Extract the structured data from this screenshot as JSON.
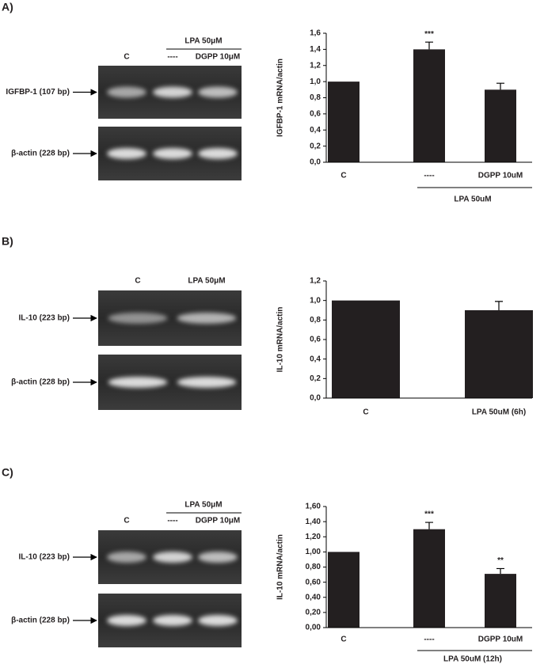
{
  "panels": [
    {
      "label": "A)",
      "gel": {
        "group_label": "LPA 50μM",
        "lanes": [
          "C",
          "----",
          "DGPP 10μM"
        ],
        "bands": [
          "IGFBP-1 (107 bp)",
          "β-actin (228 bp)"
        ]
      }
    },
    {
      "label": "B)",
      "gel": {
        "lanes": [
          "C",
          "LPA 50μM"
        ],
        "bands": [
          "IL-10 (223 bp)",
          "β-actin (228 bp)"
        ]
      }
    },
    {
      "label": "C)",
      "gel": {
        "group_label": "LPA 50μM",
        "lanes": [
          "C",
          "----",
          "DGPP 10μM"
        ],
        "bands": [
          "IL-10 (223 bp)",
          "β-actin (228 bp)"
        ]
      }
    }
  ],
  "chart_data": [
    {
      "type": "bar",
      "ylabel": "IGFBP-1 mRNA/actin",
      "categories": [
        "C",
        "----",
        "DGPP 10uM"
      ],
      "group_label": "LPA 50uM",
      "values": [
        1.0,
        1.4,
        0.9
      ],
      "errors": [
        null,
        0.09,
        0.08
      ],
      "annotations": [
        null,
        "***",
        null
      ],
      "color": "#231f20",
      "ylim": [
        0,
        1.6
      ],
      "yticks": [
        {
          "value": 0,
          "label": "0,0"
        },
        {
          "value": 0.2,
          "label": "0,2"
        },
        {
          "value": 0.4,
          "label": "0,4"
        },
        {
          "value": 0.6,
          "label": "0,6"
        },
        {
          "value": 0.8,
          "label": "0,8"
        },
        {
          "value": 1.0,
          "label": "1,0"
        },
        {
          "value": 1.2,
          "label": "1,2"
        },
        {
          "value": 1.4,
          "label": "1,4"
        },
        {
          "value": 1.6,
          "label": "1,6"
        }
      ]
    },
    {
      "type": "bar",
      "ylabel": "IL-10 mRNA/actin",
      "categories": [
        "C",
        "LPA 50uM (6h)"
      ],
      "values": [
        1.0,
        0.9
      ],
      "errors": [
        null,
        0.09
      ],
      "color": "#231f20",
      "ylim": [
        0,
        1.2
      ],
      "yticks": [
        {
          "value": 0,
          "label": "0,0"
        },
        {
          "value": 0.2,
          "label": "0,2"
        },
        {
          "value": 0.4,
          "label": "0,4"
        },
        {
          "value": 0.6,
          "label": "0,6"
        },
        {
          "value": 0.8,
          "label": "0,8"
        },
        {
          "value": 1.0,
          "label": "1,0"
        },
        {
          "value": 1.2,
          "label": "1,2"
        }
      ]
    },
    {
      "type": "bar",
      "ylabel": "IL-10 mRNA/actin",
      "categories": [
        "C",
        "----",
        "DGPP 10uM"
      ],
      "group_label": "LPA 50uM (12h)",
      "values": [
        1.0,
        1.3,
        0.71
      ],
      "errors": [
        null,
        0.09,
        0.07
      ],
      "annotations": [
        null,
        "***",
        "**"
      ],
      "color": "#231f20",
      "ylim": [
        0,
        1.6
      ],
      "yticks": [
        {
          "value": 0,
          "label": "0,00"
        },
        {
          "value": 0.2,
          "label": "0,20"
        },
        {
          "value": 0.4,
          "label": "0,40"
        },
        {
          "value": 0.6,
          "label": "0,60"
        },
        {
          "value": 0.8,
          "label": "0,80"
        },
        {
          "value": 1.0,
          "label": "1,00"
        },
        {
          "value": 1.2,
          "label": "1,20"
        },
        {
          "value": 1.4,
          "label": "1,40"
        },
        {
          "value": 1.6,
          "label": "1,60"
        }
      ]
    }
  ]
}
